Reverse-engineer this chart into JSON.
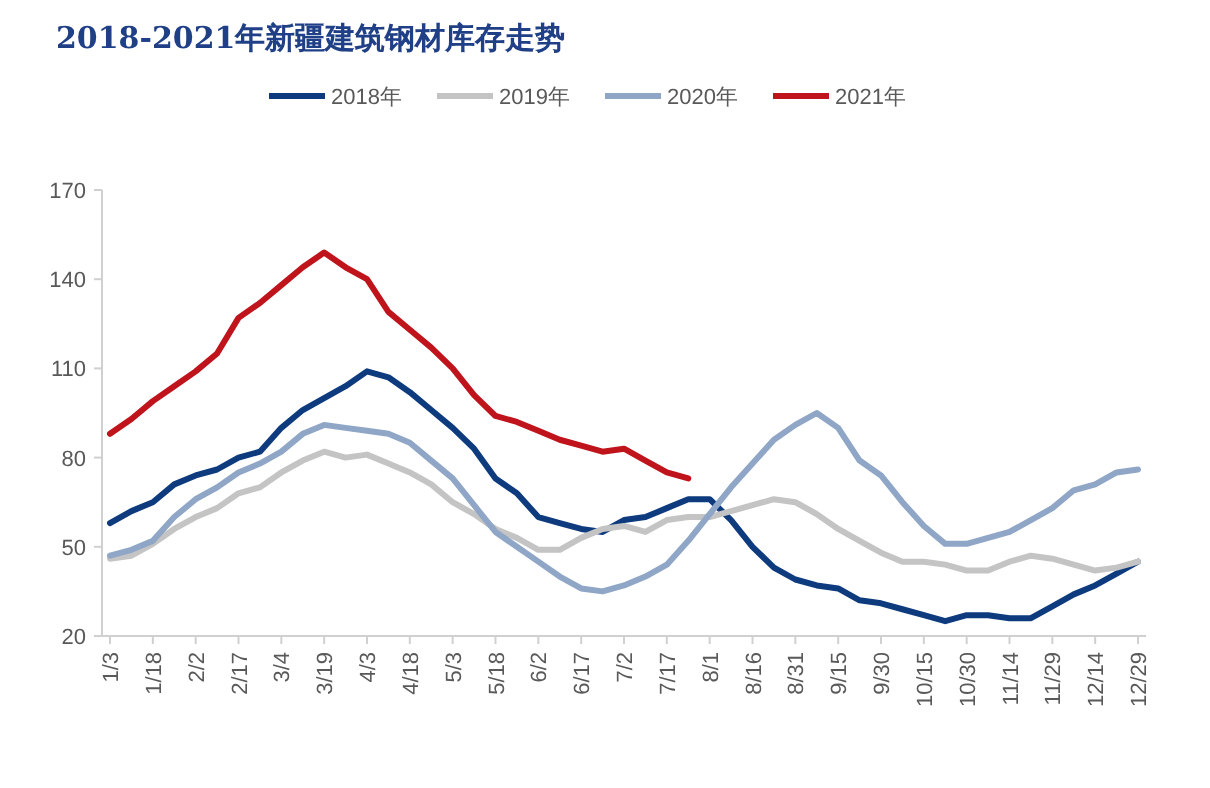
{
  "chart_data": {
    "type": "line",
    "title": "2018-2021年新疆建筑钢材库存走势",
    "categories": [
      "1/3",
      null,
      "1/18",
      null,
      "2/2",
      null,
      "2/17",
      null,
      "3/4",
      null,
      "3/19",
      null,
      "4/3",
      null,
      "4/18",
      null,
      "5/3",
      null,
      "5/18",
      null,
      "6/2",
      null,
      "6/17",
      null,
      "7/2",
      null,
      "7/17",
      null,
      "8/1",
      null,
      "8/16",
      null,
      "8/31",
      null,
      "9/15",
      null,
      "9/30",
      null,
      "10/15",
      null,
      "10/30",
      null,
      "11/14",
      null,
      "11/29",
      null,
      "12/14",
      null,
      "12/29"
    ],
    "series": [
      {
        "name": "2018年",
        "color": "#0e3a7e",
        "values": [
          58,
          62,
          65,
          71,
          74,
          76,
          80,
          82,
          90,
          96,
          100,
          104,
          109,
          107,
          102,
          96,
          90,
          83,
          73,
          68,
          60,
          58,
          56,
          55,
          59,
          60,
          63,
          66,
          66,
          59,
          50,
          43,
          39,
          37,
          36,
          32,
          31,
          29,
          27,
          25,
          27,
          27,
          26,
          26,
          30,
          34,
          37,
          41,
          45
        ]
      },
      {
        "name": "2019年",
        "color": "#c4c4c4",
        "values": [
          46,
          47,
          51,
          56,
          60,
          63,
          68,
          70,
          75,
          79,
          82,
          80,
          81,
          78,
          75,
          71,
          65,
          61,
          56,
          53,
          49,
          49,
          53,
          56,
          57,
          55,
          59,
          60,
          60,
          62,
          64,
          66,
          65,
          61,
          56,
          52,
          48,
          45,
          45,
          44,
          42,
          42,
          45,
          47,
          46,
          44,
          42,
          43,
          45
        ]
      },
      {
        "name": "2020年",
        "color": "#8fa6c6",
        "values": [
          47,
          49,
          52,
          60,
          66,
          70,
          75,
          78,
          82,
          88,
          91,
          90,
          89,
          88,
          85,
          79,
          73,
          64,
          55,
          50,
          45,
          40,
          36,
          35,
          37,
          40,
          44,
          52,
          61,
          70,
          78,
          86,
          91,
          95,
          90,
          79,
          74,
          65,
          57,
          51,
          51,
          53,
          55,
          59,
          63,
          69,
          71,
          75,
          76
        ]
      },
      {
        "name": "2021年",
        "color": "#c0141c",
        "values": [
          88,
          93,
          99,
          104,
          109,
          115,
          127,
          132,
          138,
          144,
          149,
          144,
          140,
          129,
          123,
          117,
          110,
          101,
          94,
          92,
          89,
          86,
          84,
          82,
          83,
          79,
          75,
          73,
          null,
          null,
          null,
          null,
          null,
          null,
          null,
          null,
          null,
          null,
          null,
          null,
          null,
          null,
          null,
          null,
          null,
          null,
          null,
          null,
          null
        ]
      }
    ],
    "ylim": [
      20,
      170
    ],
    "yticks": [
      20,
      50,
      80,
      110,
      140,
      170
    ],
    "legend": "top",
    "grid": false,
    "marker": "none",
    "line_style": "solid"
  }
}
